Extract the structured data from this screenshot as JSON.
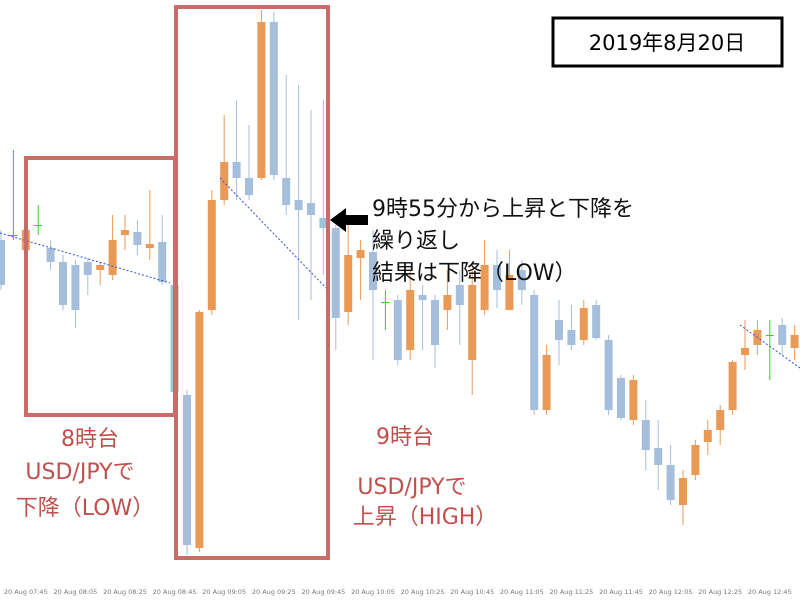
{
  "chart_data": {
    "type": "candlestick",
    "categories": [
      null,
      null,
      "20 Aug 07:45",
      null,
      null,
      null,
      "20 Aug 08:05",
      null,
      null,
      null,
      "20 Aug 08:25",
      null,
      null,
      null,
      "20 Aug 08:45",
      null,
      null,
      null,
      "20 Aug 09:05",
      null,
      null,
      null,
      "20 Aug 09:25",
      null,
      null,
      null,
      "20 Aug 09:45",
      null,
      null,
      null,
      "20 Aug 10:05",
      null,
      null,
      null,
      "20 Aug 10:25",
      null,
      null,
      null,
      "20 Aug 10:45",
      null,
      null,
      null,
      "20 Aug 11:05",
      null,
      null,
      null,
      "20 Aug 11:25",
      null,
      null,
      null,
      "20 Aug 11:45",
      null,
      null,
      null,
      "20 Aug 12:05",
      null,
      null,
      null,
      "20 Aug 12:25",
      null,
      null,
      null,
      "20 Aug 12:45",
      null,
      null
    ],
    "open": [
      340,
      345,
      330,
      355,
      332,
      318,
      315,
      318,
      310,
      305,
      345,
      348,
      332,
      338,
      295,
      185,
      32,
      270,
      380,
      418,
      402,
      402,
      558,
      402,
      380,
      377,
      362,
      352,
      268,
      322,
      328,
      278,
      280,
      230,
      285,
      280,
      270,
      295,
      220,
      270,
      315,
      270,
      310,
      285,
      170,
      260,
      250,
      240,
      275,
      240,
      202,
      160,
      160,
      132,
      115,
      75,
      105,
      138,
      150,
      170,
      225,
      235,
      245,
      255,
      232
    ],
    "high": [
      350,
      430,
      355,
      375,
      340,
      325,
      320,
      322,
      318,
      365,
      365,
      360,
      390,
      365,
      300,
      190,
      270,
      390,
      465,
      480,
      455,
      570,
      568,
      505,
      495,
      470,
      480,
      355,
      355,
      340,
      350,
      290,
      285,
      310,
      295,
      285,
      310,
      310,
      310,
      340,
      330,
      330,
      320,
      290,
      235,
      280,
      275,
      280,
      280,
      245,
      205,
      205,
      180,
      160,
      135,
      110,
      140,
      160,
      175,
      220,
      260,
      260,
      260,
      262,
      255
    ],
    "low": [
      290,
      340,
      325,
      345,
      310,
      270,
      252,
      285,
      295,
      300,
      330,
      325,
      320,
      295,
      185,
      25,
      28,
      265,
      375,
      380,
      380,
      400,
      400,
      365,
      260,
      280,
      305,
      230,
      255,
      280,
      220,
      250,
      215,
      220,
      230,
      212,
      250,
      235,
      185,
      265,
      272,
      270,
      275,
      165,
      165,
      215,
      230,
      235,
      240,
      165,
      160,
      155,
      110,
      90,
      75,
      55,
      100,
      125,
      135,
      165,
      210,
      225,
      200,
      225,
      220
    ],
    "close": [
      295,
      345,
      350,
      355,
      318,
      275,
      270,
      305,
      315,
      340,
      350,
      335,
      336,
      298,
      188,
      35,
      268,
      380,
      418,
      402,
      385,
      558,
      405,
      375,
      370,
      365,
      352,
      262,
      325,
      330,
      290,
      278,
      220,
      290,
      280,
      235,
      285,
      275,
      295,
      315,
      290,
      305,
      290,
      170,
      225,
      240,
      235,
      272,
      242,
      170,
      162,
      200,
      130,
      115,
      80,
      102,
      135,
      150,
      170,
      218,
      232,
      250,
      245,
      235,
      245
    ],
    "up_color": "#eb9a55",
    "down_color": "#a5bedb",
    "doji_color": "#2ecc2e",
    "ylim": [
      0,
      580
    ],
    "date": "2019年8月20日",
    "annotations": [
      "8時台",
      "USD/JPYで",
      "下降（LOW）",
      "9時台",
      "USD/JPYで",
      "上昇（HIGH）",
      "9時55分から上昇と下降を",
      "繰り返し",
      "結果は下降（LOW）"
    ]
  }
}
